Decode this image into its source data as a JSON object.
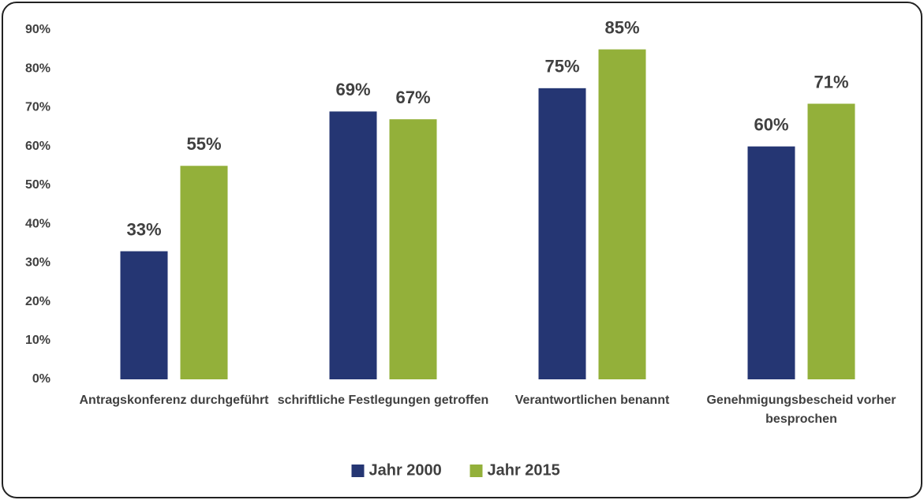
{
  "chart_data": {
    "type": "bar",
    "categories": [
      "Antragskonferenz durchgeführt",
      "schriftliche Festlegungen getroffen",
      "Verantwortlichen benannt",
      "Genehmigungsbescheid vorher besprochen"
    ],
    "series": [
      {
        "name": "Jahr 2000",
        "color": "#253673",
        "values": [
          33,
          69,
          75,
          60
        ],
        "value_labels": [
          "33%",
          "69%",
          "75%",
          "60%"
        ]
      },
      {
        "name": "Jahr 2015",
        "color": "#93b03a",
        "values": [
          55,
          67,
          85,
          71
        ],
        "value_labels": [
          "55%",
          "67%",
          "85%",
          "71%"
        ]
      }
    ],
    "ylim": [
      0,
      90
    ],
    "yticks": [
      {
        "value": 0,
        "label": "0%"
      },
      {
        "value": 10,
        "label": "10%"
      },
      {
        "value": 20,
        "label": "20%"
      },
      {
        "value": 30,
        "label": "30%"
      },
      {
        "value": 40,
        "label": "40%"
      },
      {
        "value": 50,
        "label": "50%"
      },
      {
        "value": 60,
        "label": "60%"
      },
      {
        "value": 70,
        "label": "70%"
      },
      {
        "value": 80,
        "label": "80%"
      },
      {
        "value": 90,
        "label": "90%"
      }
    ],
    "grid": false,
    "legend": "bottom"
  }
}
